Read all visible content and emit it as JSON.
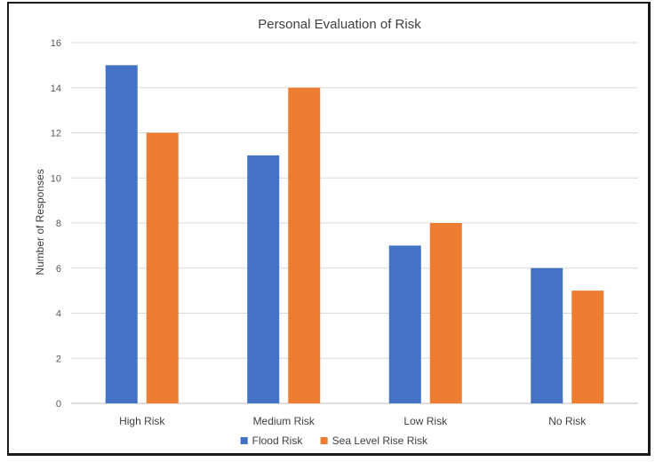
{
  "chart_data": {
    "type": "bar",
    "title": "Personal Evaluation of Risk",
    "xlabel": "",
    "ylabel": "Number of Responses",
    "categories": [
      "High Risk",
      "Medium Risk",
      "Low Risk",
      "No Risk"
    ],
    "series": [
      {
        "name": "Flood Risk",
        "values": [
          15,
          11,
          7,
          6
        ],
        "color": "#4472C4"
      },
      {
        "name": "Sea Level Rise Risk",
        "values": [
          12,
          14,
          8,
          5
        ],
        "color": "#ED7D31"
      }
    ],
    "ylim": [
      0,
      16
    ],
    "yticks": [
      0,
      2,
      4,
      6,
      8,
      10,
      12,
      14,
      16
    ],
    "grid": true,
    "legend_position": "bottom"
  }
}
